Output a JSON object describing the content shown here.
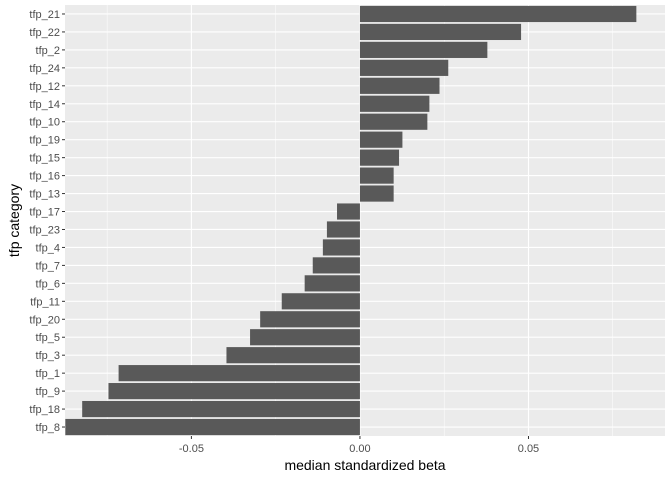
{
  "chart_data": {
    "type": "bar",
    "orientation": "horizontal",
    "xlabel": "median standardized beta",
    "ylabel": "tfp category",
    "xlim": [
      -0.0875,
      0.0905
    ],
    "x_ticks": [
      -0.05,
      0.0,
      0.05
    ],
    "x_tick_labels": [
      "-0.05",
      "0.00",
      "0.05"
    ],
    "grid": true,
    "categories": [
      "tfp_21",
      "tfp_22",
      "tfp_2",
      "tfp_24",
      "tfp_12",
      "tfp_14",
      "tfp_10",
      "tfp_19",
      "tfp_15",
      "tfp_16",
      "tfp_13",
      "tfp_17",
      "tfp_23",
      "tfp_4",
      "tfp_7",
      "tfp_6",
      "tfp_11",
      "tfp_20",
      "tfp_5",
      "tfp_3",
      "tfp_1",
      "tfp_9",
      "tfp_18",
      "tfp_8"
    ],
    "values": [
      0.082,
      0.0478,
      0.0378,
      0.0262,
      0.0236,
      0.0206,
      0.02,
      0.0126,
      0.0116,
      0.01,
      0.01,
      -0.0068,
      -0.0098,
      -0.011,
      -0.014,
      -0.0164,
      -0.0232,
      -0.0296,
      -0.0326,
      -0.0396,
      -0.0716,
      -0.0746,
      -0.0824,
      -0.0874
    ],
    "colors": {
      "panel": "#ebebeb",
      "grid_major": "#ffffff",
      "bar": "#595959",
      "tick_text": "#4d4d4d",
      "title_text": "#000000"
    }
  }
}
